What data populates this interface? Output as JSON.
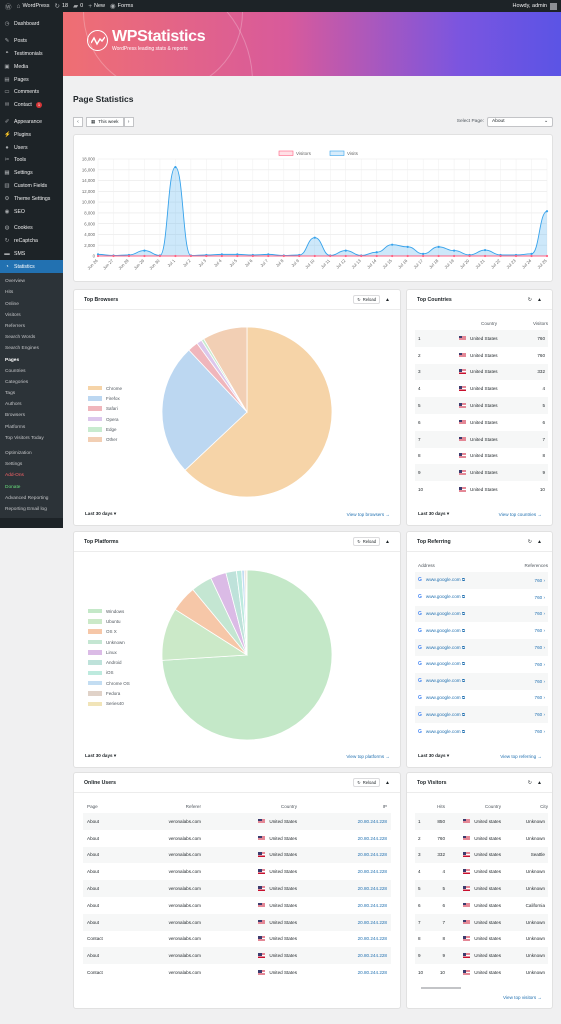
{
  "adminbar": {
    "site": "WordPress",
    "updates": "18",
    "comments": "0",
    "new": "New",
    "forms": "Forms",
    "howdy": "Howdy, admin"
  },
  "sidebar": {
    "items": [
      {
        "label": "Dashboard",
        "icon": "dashboard-icon",
        "glyph": "◷"
      },
      {
        "sep": true
      },
      {
        "label": "Posts",
        "icon": "pin-icon",
        "glyph": "✎"
      },
      {
        "label": "Testimonials",
        "icon": "quote-icon",
        "glyph": "❝"
      },
      {
        "label": "Media",
        "icon": "media-icon",
        "glyph": "▣"
      },
      {
        "label": "Pages",
        "icon": "pages-icon",
        "glyph": "▤"
      },
      {
        "label": "Comments",
        "icon": "comment-icon",
        "glyph": "▭"
      },
      {
        "label": "Contact",
        "icon": "envelope-icon",
        "glyph": "✉",
        "badge": "1"
      },
      {
        "sep": true
      },
      {
        "label": "Appearance",
        "icon": "brush-icon",
        "glyph": "✐"
      },
      {
        "label": "Plugins",
        "icon": "plug-icon",
        "glyph": "⚡"
      },
      {
        "label": "Users",
        "icon": "user-icon",
        "glyph": "●"
      },
      {
        "label": "Tools",
        "icon": "wrench-icon",
        "glyph": "✂"
      },
      {
        "label": "Settings",
        "icon": "settings-icon",
        "glyph": "▦"
      },
      {
        "label": "Custom Fields",
        "icon": "fields-icon",
        "glyph": "▥"
      },
      {
        "label": "Theme Settings",
        "icon": "gear-icon",
        "glyph": "⚙"
      },
      {
        "label": "SEO",
        "icon": "seo-icon",
        "glyph": "◉"
      },
      {
        "sep": true
      },
      {
        "label": "Cookies",
        "icon": "cookie-icon",
        "glyph": "◍"
      },
      {
        "label": "reCaptcha",
        "icon": "captcha-icon",
        "glyph": "↻"
      },
      {
        "label": "SMS",
        "icon": "sms-icon",
        "glyph": "▬"
      },
      {
        "label": "Statistics",
        "icon": "statistics-icon",
        "glyph": "◔",
        "active": true
      }
    ],
    "submenu": [
      {
        "label": "Overview"
      },
      {
        "label": "Hits"
      },
      {
        "label": "Online"
      },
      {
        "label": "Visitors"
      },
      {
        "label": "Referrers"
      },
      {
        "label": "Search Words"
      },
      {
        "label": "Search Engines"
      },
      {
        "label": "Pages",
        "current": true
      },
      {
        "label": "Countries"
      },
      {
        "label": "Categories"
      },
      {
        "label": "Tags"
      },
      {
        "label": "Authors"
      },
      {
        "label": "Browsers"
      },
      {
        "label": "Platforms"
      },
      {
        "label": "Top Visitors Today"
      },
      {
        "gap": true
      },
      {
        "label": "Optimization"
      },
      {
        "label": "Settings"
      },
      {
        "label": "Add-Ons",
        "style": "orange"
      },
      {
        "label": "Donate",
        "style": "green"
      },
      {
        "label": "Advanced Reporting"
      },
      {
        "label": "Reporting Email log"
      }
    ]
  },
  "banner": {
    "brand": "WPStatistics",
    "tagline": "WordPress leading stats & reports"
  },
  "page": {
    "title": "Page Statistics"
  },
  "datebar": {
    "range": "This week",
    "select_label": "Select Page:",
    "select_value": "About"
  },
  "chart_data": [
    {
      "type": "area",
      "series": [
        {
          "name": "Visitors",
          "color": "#ff6384",
          "values": [
            0,
            0,
            0,
            0,
            0,
            0,
            0,
            0,
            0,
            0,
            0,
            0,
            0,
            0,
            0,
            0,
            0,
            0,
            0,
            0,
            0,
            0,
            0,
            0,
            0,
            0,
            0,
            0,
            0,
            0
          ]
        },
        {
          "name": "Visits",
          "color": "#36a2eb",
          "values": [
            300,
            100,
            200,
            1000,
            100,
            16500,
            100,
            200,
            300,
            300,
            200,
            300,
            100,
            200,
            3400,
            100,
            1000,
            100,
            700,
            2100,
            1700,
            400,
            1700,
            1000,
            200,
            1100,
            200,
            200,
            400,
            8300
          ]
        }
      ],
      "x": [
        "Jun 26",
        "Jun 27",
        "Jun 28",
        "Jun 29",
        "Jun 30",
        "Jul 1",
        "Jul 2",
        "Jul 3",
        "Jul 4",
        "Jul 5",
        "Jul 6",
        "Jul 7",
        "Jul 8",
        "Jul 9",
        "Jul 10",
        "Jul 11",
        "Jul 12",
        "Jul 13",
        "Jul 14",
        "Jul 15",
        "Jul 16",
        "Jul 17",
        "Jul 18",
        "Jul 19",
        "Jul 20",
        "Jul 21",
        "Jul 22",
        "Jul 23",
        "Jul 24",
        "Jul 25"
      ],
      "ylim": [
        0,
        18000
      ],
      "yticks": [
        "0",
        "2,000",
        "4,000",
        "6,000",
        "8,000",
        "10,000",
        "12,000",
        "14,000",
        "16,000",
        "18,000"
      ],
      "legend": "top"
    },
    {
      "type": "pie",
      "title": "Top Browsers",
      "categories": [
        "Chrome",
        "Firefox",
        "Safari",
        "Opera",
        "Edge",
        "Other"
      ],
      "values": [
        63,
        25,
        2,
        1,
        0.5,
        8.5
      ],
      "colors": [
        "#f6d4a8",
        "#bcd7f1",
        "#f0b6bc",
        "#dcc7ec",
        "#c8ebcf",
        "#f2cfb4"
      ]
    },
    {
      "type": "pie",
      "title": "Top Platforms",
      "categories": [
        "Windows",
        "Ubuntu",
        "OS X",
        "Unknown",
        "Linux",
        "Android",
        "iOS",
        "Chrome OS",
        "Fedora",
        "Series40"
      ],
      "values": [
        74,
        10,
        5,
        4,
        3,
        2,
        1,
        0.5,
        0.3,
        0.2
      ],
      "colors": [
        "#c4e8c8",
        "#cbe9c8",
        "#f6c7a8",
        "#c4e6d2",
        "#dbbbe6",
        "#bee2da",
        "#bdeade",
        "#c3ddf2",
        "#e0d2c8",
        "#f1e4b8"
      ]
    }
  ],
  "browsers": {
    "title": "Top Browsers",
    "reload": "Reload",
    "period": "Last 30 days",
    "view": "View top browsers →"
  },
  "countries": {
    "title": "Top Countries",
    "cols": [
      "",
      "Country",
      "Visitors"
    ],
    "rows": [
      {
        "n": "1",
        "c": "United States",
        "v": "760"
      },
      {
        "n": "2",
        "c": "United States",
        "v": "760"
      },
      {
        "n": "3",
        "c": "United States",
        "v": "332"
      },
      {
        "n": "4",
        "c": "United States",
        "v": "4"
      },
      {
        "n": "5",
        "c": "United States",
        "v": "5"
      },
      {
        "n": "6",
        "c": "United States",
        "v": "6"
      },
      {
        "n": "7",
        "c": "United States",
        "v": "7"
      },
      {
        "n": "8",
        "c": "United States",
        "v": "8"
      },
      {
        "n": "9",
        "c": "United States",
        "v": "9"
      },
      {
        "n": "10",
        "c": "United States",
        "v": "10"
      }
    ],
    "period": "Last 30 days",
    "view": "View top countries →"
  },
  "platforms": {
    "title": "Top Platforms",
    "reload": "Reload",
    "period": "Last 30 days",
    "view": "View top platforms →"
  },
  "referring": {
    "title": "Top Referring",
    "cols": [
      "Address",
      "References"
    ],
    "rows": [
      {
        "a": "www.google.com",
        "r": "760"
      },
      {
        "a": "www.google.com",
        "r": "760"
      },
      {
        "a": "www.google.com",
        "r": "760"
      },
      {
        "a": "www.google.com",
        "r": "760"
      },
      {
        "a": "www.google.com",
        "r": "760"
      },
      {
        "a": "www.google.com",
        "r": "760"
      },
      {
        "a": "www.google.com",
        "r": "760"
      },
      {
        "a": "www.google.com",
        "r": "760"
      },
      {
        "a": "www.google.com",
        "r": "760"
      },
      {
        "a": "www.google.com",
        "r": "760"
      }
    ],
    "period": "Last 30 days",
    "view": "View top referring →"
  },
  "online": {
    "title": "Online Users",
    "reload": "Reload",
    "cols": [
      "Page",
      "Referer",
      "Country",
      "IP"
    ],
    "rows": [
      {
        "p": "About",
        "r": "veronalabs.com",
        "c": "United States",
        "ip": "20.80.244.228"
      },
      {
        "p": "About",
        "r": "veronalabs.com",
        "c": "United States",
        "ip": "20.80.244.228"
      },
      {
        "p": "About",
        "r": "veronalabs.com",
        "c": "United States",
        "ip": "20.80.244.228"
      },
      {
        "p": "About",
        "r": "veronalabs.com",
        "c": "United States",
        "ip": "20.80.244.228"
      },
      {
        "p": "About",
        "r": "veronalabs.com",
        "c": "United States",
        "ip": "20.80.244.228"
      },
      {
        "p": "About",
        "r": "veronalabs.com",
        "c": "United States",
        "ip": "20.80.244.228"
      },
      {
        "p": "About",
        "r": "veronalabs.com",
        "c": "United States",
        "ip": "20.80.244.228"
      },
      {
        "p": "Contact",
        "r": "veronalabs.com",
        "c": "United States",
        "ip": "20.80.244.228"
      },
      {
        "p": "About",
        "r": "veronalabs.com",
        "c": "United States",
        "ip": "20.80.244.228"
      },
      {
        "p": "Contact",
        "r": "veronalabs.com",
        "c": "United States",
        "ip": "20.80.244.228"
      }
    ]
  },
  "visitors": {
    "title": "Top Visitors",
    "cols": [
      "",
      "Hits",
      "Country",
      "City"
    ],
    "rows": [
      {
        "n": "1",
        "h": "850",
        "c": "United states",
        "city": "Unknown"
      },
      {
        "n": "2",
        "h": "760",
        "c": "United states",
        "city": "Unknown"
      },
      {
        "n": "3",
        "h": "332",
        "c": "United states",
        "city": "Seattle"
      },
      {
        "n": "4",
        "h": "4",
        "c": "United states",
        "city": "Unknown"
      },
      {
        "n": "5",
        "h": "5",
        "c": "United states",
        "city": "Unknown"
      },
      {
        "n": "6",
        "h": "6",
        "c": "United states",
        "city": "California"
      },
      {
        "n": "7",
        "h": "7",
        "c": "United states",
        "city": "Unknown"
      },
      {
        "n": "8",
        "h": "8",
        "c": "United states",
        "city": "Unknown"
      },
      {
        "n": "9",
        "h": "9",
        "c": "United states",
        "city": "Unknown"
      },
      {
        "n": "10",
        "h": "10",
        "c": "United states",
        "city": "Unknown"
      }
    ],
    "view": "View top visitors →"
  }
}
